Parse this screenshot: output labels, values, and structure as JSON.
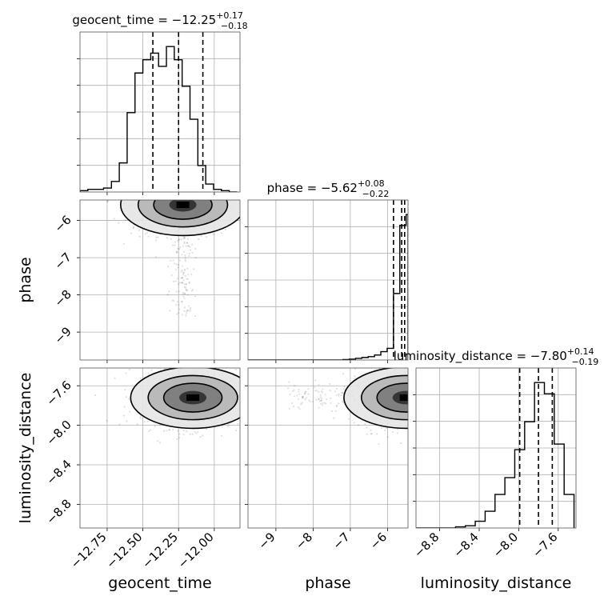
{
  "chart_data": {
    "type": "corner",
    "parameters": [
      "geocent_time",
      "phase",
      "luminosity_distance"
    ],
    "titles": [
      {
        "base": "geocent_time = −12.25",
        "plus": "+0.17",
        "minus": "−0.18"
      },
      {
        "base": "phase = −5.62",
        "plus": "+0.08",
        "minus": "−0.22"
      },
      {
        "base": "luminosity_distance = −7.80",
        "plus": "+0.14",
        "minus": "−0.19"
      }
    ],
    "axis_labels": {
      "x": [
        "geocent_time",
        "phase",
        "luminosity_distance"
      ],
      "y": [
        "phase",
        "luminosity_distance"
      ]
    },
    "ranges": {
      "geocent_time": [
        -12.94,
        -11.82
      ],
      "phase": [
        -9.75,
        -5.45
      ],
      "luminosity_distance": [
        -9.04,
        -7.42
      ]
    },
    "ticks": {
      "geocent_time": {
        "values": [
          -12.75,
          -12.5,
          -12.25,
          -12.0
        ],
        "labels": [
          "−12.75",
          "−12.50",
          "−12.25",
          "−12.00"
        ]
      },
      "phase": {
        "values": [
          -9,
          -8,
          -7,
          -6
        ],
        "labels": [
          "−9",
          "−8",
          "−7",
          "−6"
        ]
      },
      "luminosity_distance": {
        "values": [
          -8.8,
          -8.4,
          -8.0,
          -7.6
        ],
        "labels": [
          "−8.8",
          "−8.4",
          "−8.0",
          "−7.6"
        ]
      }
    },
    "quantiles": {
      "geocent_time": [
        -12.43,
        -12.25,
        -12.08
      ],
      "phase": [
        -5.84,
        -5.62,
        -5.54
      ],
      "luminosity_distance": [
        -7.99,
        -7.8,
        -7.66
      ]
    },
    "histograms": {
      "geocent_time": {
        "edges": [
          -12.94,
          -12.885,
          -12.83,
          -12.775,
          -12.72,
          -12.665,
          -12.61,
          -12.555,
          -12.5,
          -12.445,
          -12.39,
          -12.335,
          -12.28,
          -12.225,
          -12.17,
          -12.115,
          -12.06,
          -12.005,
          -11.95,
          -11.895,
          -11.84
        ],
        "counts": [
          1,
          2,
          2,
          3,
          8,
          22,
          60,
          90,
          100,
          105,
          95,
          110,
          100,
          80,
          55,
          20,
          6,
          2,
          1,
          0
        ]
      },
      "phase": {
        "edges": [
          -9.75,
          -9.58,
          -9.41,
          -9.24,
          -9.07,
          -8.9,
          -8.73,
          -8.56,
          -8.39,
          -8.22,
          -8.05,
          -7.88,
          -7.71,
          -7.54,
          -7.37,
          -7.2,
          -7.03,
          -6.86,
          -6.69,
          -6.52,
          -6.35,
          -6.18,
          -6.01,
          -5.84,
          -5.67,
          -5.5,
          -5.45
        ],
        "counts": [
          0,
          0,
          0,
          0,
          0,
          0,
          0,
          0,
          0,
          0,
          0,
          0,
          0,
          0,
          0,
          0.5,
          1,
          2,
          3,
          4,
          6,
          10,
          14,
          80,
          162,
          175
        ]
      },
      "luminosity_distance": {
        "edges": [
          -9.04,
          -8.94,
          -8.84,
          -8.74,
          -8.64,
          -8.54,
          -8.44,
          -8.34,
          -8.24,
          -8.14,
          -8.04,
          -7.94,
          -7.84,
          -7.74,
          -7.64,
          -7.54,
          -7.44
        ],
        "counts": [
          0,
          0,
          0,
          0,
          1,
          2,
          6,
          15,
          30,
          45,
          70,
          95,
          130,
          120,
          75,
          30
        ]
      }
    },
    "density_peaks": {
      "phase_vs_geocent_time": {
        "x": -12.22,
        "y": -5.58
      },
      "luminosity_distance_vs_geocent_time": {
        "x": -12.15,
        "y": -7.72
      },
      "luminosity_distance_vs_phase": {
        "x": -5.5,
        "y": -7.72
      }
    }
  }
}
